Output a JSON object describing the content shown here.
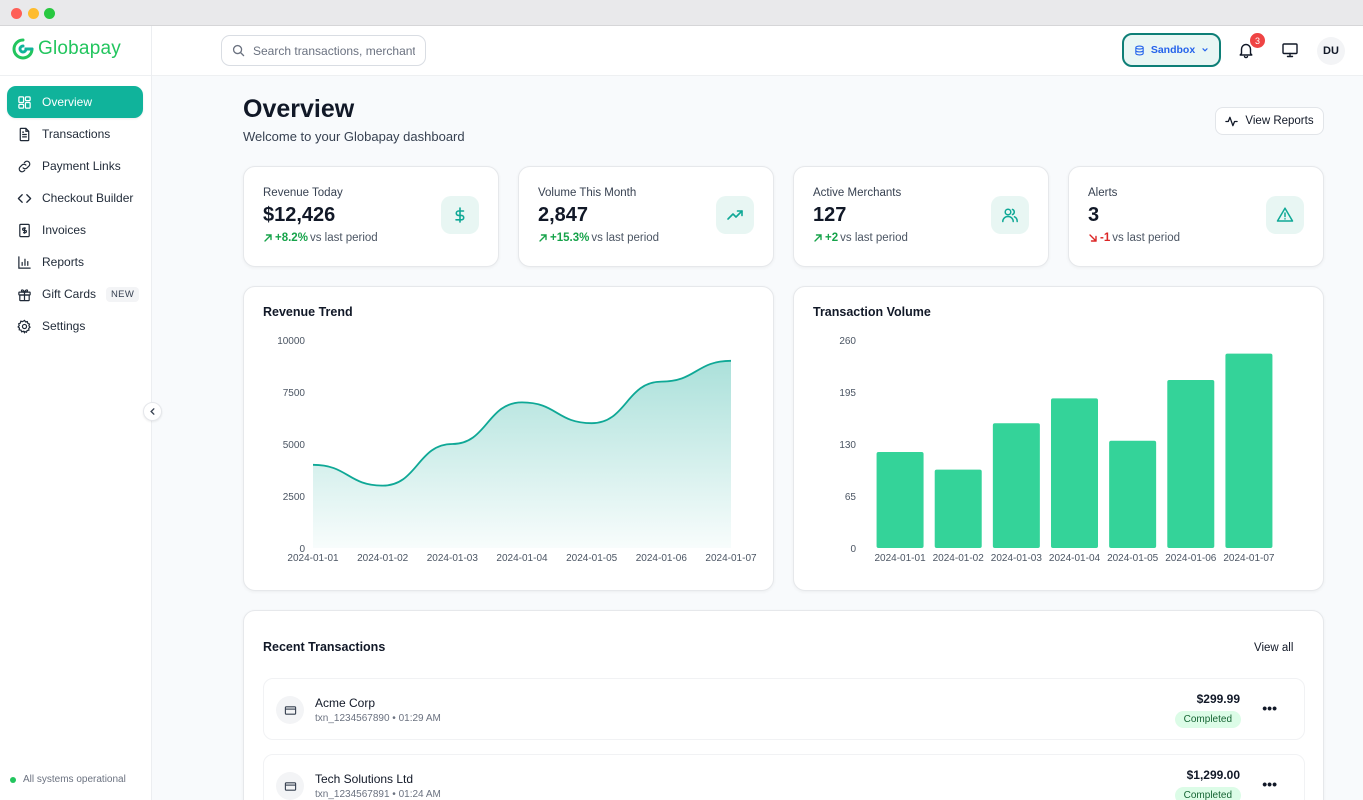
{
  "brand": {
    "name": "Globapay"
  },
  "sidebar": {
    "items": [
      {
        "label": "Overview",
        "icon": "dashboard-icon",
        "active": true
      },
      {
        "label": "Transactions",
        "icon": "file-text-icon"
      },
      {
        "label": "Payment Links",
        "icon": "link-icon"
      },
      {
        "label": "Checkout Builder",
        "icon": "code-icon"
      },
      {
        "label": "Invoices",
        "icon": "invoice-icon"
      },
      {
        "label": "Reports",
        "icon": "bar-chart-icon"
      },
      {
        "label": "Gift Cards",
        "icon": "gift-icon",
        "badge": "NEW"
      },
      {
        "label": "Settings",
        "icon": "gear-icon"
      }
    ],
    "status": "All systems operational"
  },
  "topbar": {
    "search_placeholder": "Search transactions, merchants...",
    "environment": "Sandbox",
    "notifications_count": "3",
    "user_initials": "DU"
  },
  "page": {
    "title": "Overview",
    "subtitle": "Welcome to your Globapay dashboard",
    "view_reports": "View Reports"
  },
  "stats": [
    {
      "title": "Revenue Today",
      "value": "$12,426",
      "change": "+8.2%",
      "direction": "up",
      "suffix": "vs last period",
      "icon": "dollar-icon"
    },
    {
      "title": "Volume This Month",
      "value": "2,847",
      "change": "+15.3%",
      "direction": "up",
      "suffix": "vs last period",
      "icon": "trending-up-icon"
    },
    {
      "title": "Active Merchants",
      "value": "127",
      "change": "+2",
      "direction": "up",
      "suffix": "vs last period",
      "icon": "users-icon"
    },
    {
      "title": "Alerts",
      "value": "3",
      "change": "-1",
      "direction": "down",
      "suffix": "vs last period",
      "icon": "alert-triangle-icon"
    }
  ],
  "chart_data": [
    {
      "type": "area",
      "title": "Revenue Trend",
      "x": [
        "2024-01-01",
        "2024-01-02",
        "2024-01-03",
        "2024-01-04",
        "2024-01-05",
        "2024-01-06",
        "2024-01-07"
      ],
      "values": [
        4000,
        3000,
        5000,
        7000,
        6000,
        8000,
        9000
      ],
      "yticks": [
        0,
        2500,
        5000,
        7500,
        10000
      ],
      "ylim": [
        0,
        10000
      ],
      "color": "#0fa896"
    },
    {
      "type": "bar",
      "title": "Transaction Volume",
      "categories": [
        "2024-01-01",
        "2024-01-02",
        "2024-01-03",
        "2024-01-04",
        "2024-01-05",
        "2024-01-06",
        "2024-01-07"
      ],
      "values": [
        120,
        98,
        156,
        187,
        134,
        210,
        243
      ],
      "yticks": [
        0,
        65,
        130,
        195,
        260
      ],
      "ylim": [
        0,
        260
      ],
      "color": "#34d399"
    }
  ],
  "transactions": {
    "title": "Recent Transactions",
    "view_all": "View all",
    "items": [
      {
        "name": "Acme Corp",
        "meta": "txn_1234567890 • 01:29 AM",
        "amount": "$299.99",
        "status": "Completed"
      },
      {
        "name": "Tech Solutions Ltd",
        "meta": "txn_1234567891 • 01:24 AM",
        "amount": "$1,299.00",
        "status": "Completed"
      }
    ]
  }
}
